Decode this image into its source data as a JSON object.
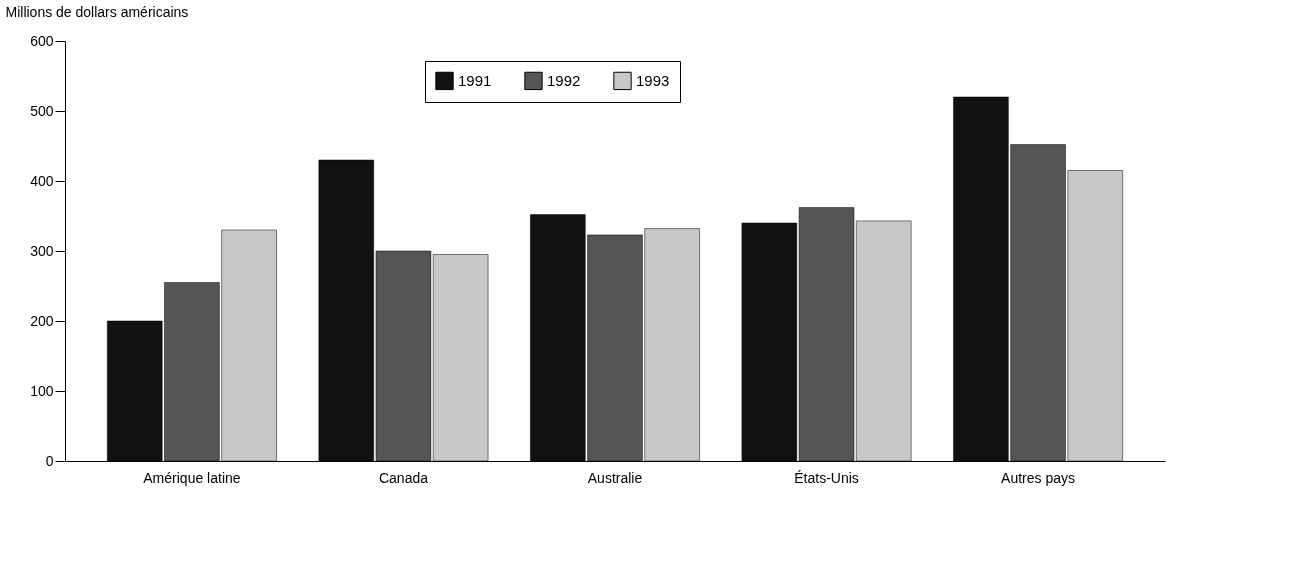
{
  "chart_data": {
    "type": "bar",
    "ylabel": "Millions de dollars américains",
    "categories": [
      "Amérique latine",
      "Canada",
      "Australie",
      "États-Unis",
      "Autres pays"
    ],
    "series": [
      {
        "name": "1991",
        "color": "#111111",
        "values": [
          200,
          430,
          352,
          340,
          520
        ]
      },
      {
        "name": "1992",
        "color": "#555555",
        "values": [
          255,
          300,
          323,
          362,
          452
        ]
      },
      {
        "name": "1993",
        "color": "#c8c8c8",
        "values": [
          330,
          295,
          332,
          343,
          415
        ]
      }
    ],
    "ylim": [
      0,
      600
    ],
    "yticks": [
      0,
      100,
      200,
      300,
      400,
      500,
      600
    ],
    "grid": false,
    "legend": "top"
  }
}
